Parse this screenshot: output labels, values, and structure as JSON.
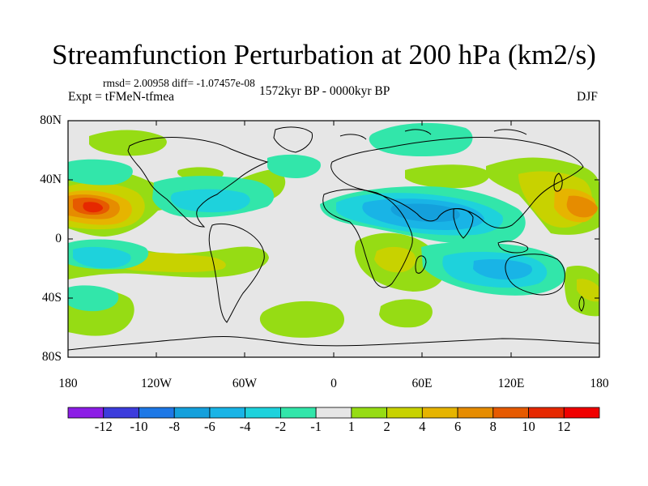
{
  "title": "Streamfunction Perturbation at 200 hPa (km2/s)",
  "stats": "rmsd= 2.00958 diff= -1.07457e-08",
  "experiment": "Expt = tFMeN-tfmea",
  "period": "1572kyr BP - 0000kyr BP",
  "season": "DJF",
  "y_ticks": [
    "80N",
    "40N",
    "0",
    "40S",
    "80S"
  ],
  "x_ticks": [
    "180",
    "120W",
    "60W",
    "0",
    "60E",
    "120E",
    "180"
  ],
  "colorbar": {
    "labels": [
      "-12",
      "-10",
      "-8",
      "-6",
      "-4",
      "-2",
      "-1",
      "1",
      "2",
      "4",
      "6",
      "8",
      "10",
      "12"
    ],
    "colors": [
      "#8c1ee6",
      "#3c3cdc",
      "#1e78e6",
      "#14a0dc",
      "#19b4e6",
      "#1ed2dc",
      "#32e6aa",
      "#e6e6e6",
      "#96dc14",
      "#c8d200",
      "#e6b400",
      "#e68c00",
      "#e65a00",
      "#e62800",
      "#f00000"
    ]
  },
  "contour_fields": [
    {
      "name": "anomaly-central-pacific-north",
      "value": 12
    },
    {
      "name": "anomaly-west-pacific-north",
      "value": 8
    },
    {
      "name": "anomaly-tropical-atlantic-indian",
      "value": -6
    },
    {
      "name": "anomaly-south-indian",
      "value": -4
    },
    {
      "name": "anomaly-south-pacific",
      "value": -4
    },
    {
      "name": "anomaly-arctic-siberia",
      "value": -2
    },
    {
      "name": "anomaly-south-atlantic",
      "value": 2
    }
  ]
}
